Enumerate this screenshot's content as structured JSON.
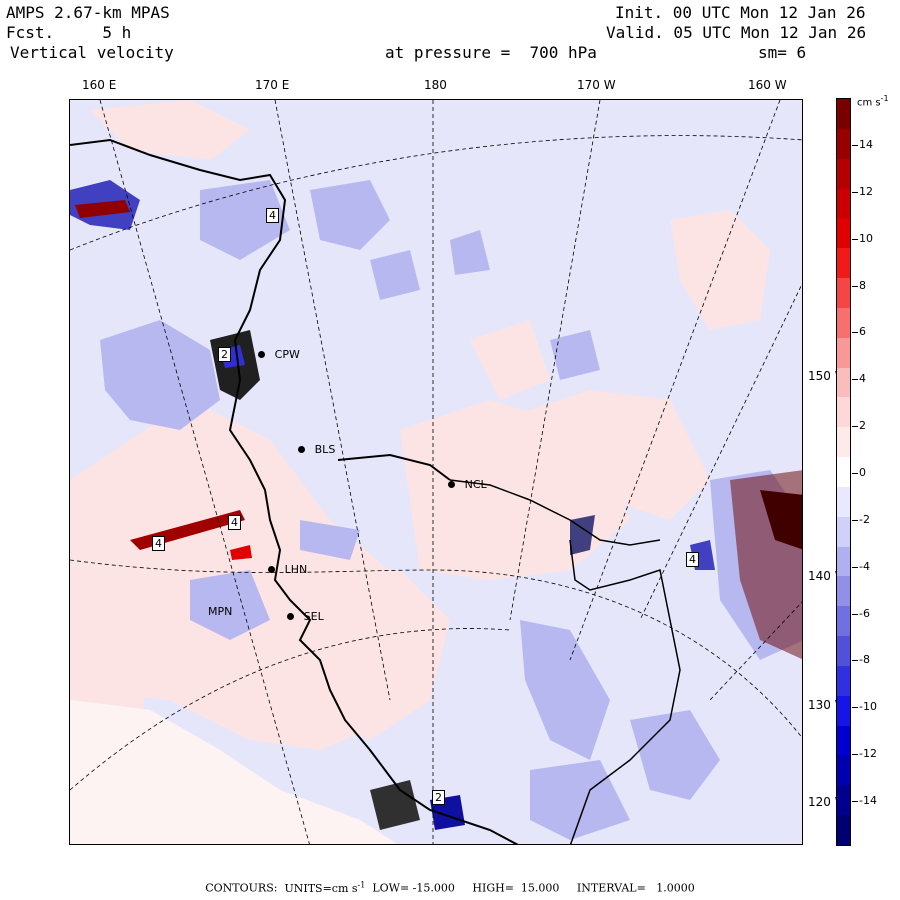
{
  "header": {
    "model": "AMPS 2.67-km MPAS",
    "fcst": "Fcst.     5 h",
    "field": "Vertical velocity",
    "init": "Init. 00 UTC Mon 12 Jan 26",
    "valid": "Valid. 05 UTC Mon 12 Jan 26",
    "level": "at pressure =  700 hPa",
    "smooth": "sm= 6"
  },
  "lon_labels": [
    "160 E",
    "170 E",
    "180",
    "170 W",
    "160 W"
  ],
  "lat_labels": [
    "150 W",
    "140 W",
    "130 W",
    "120 W"
  ],
  "colorbar": {
    "unit": "cm s",
    "unit_exp": "-1",
    "labels": [
      "14",
      "12",
      "10",
      "8",
      "6",
      "4",
      "2",
      "0",
      "-2",
      "-4",
      "-6",
      "-8",
      "-10",
      "-12",
      "-14"
    ],
    "colors": [
      "#7a0000",
      "#980000",
      "#b40000",
      "#cc0000",
      "#e00000",
      "#f01a1a",
      "#f54545",
      "#f77070",
      "#f99898",
      "#fbbcbc",
      "#fdd8d8",
      "#ffeaea",
      "#ffffff",
      "#e8e8ff",
      "#d0d0fa",
      "#b0b0f0",
      "#9090e8",
      "#7070e0",
      "#5050d8",
      "#3030e0",
      "#1515e8",
      "#0000d0",
      "#0000b0",
      "#000090",
      "#000070"
    ]
  },
  "stations": [
    "CPW",
    "BLS",
    "NCL",
    "LHN",
    "SEL",
    "MPN"
  ],
  "contour_markers": [
    "4",
    "2",
    "4",
    "4",
    "4",
    "2"
  ],
  "footer": {
    "contours_label": "CONTOURS:",
    "units_label": "UNITS=cm s",
    "units_exp": "-1",
    "low": "LOW= -15.000",
    "high": "HIGH=  15.000",
    "interval": "INTERVAL=   1.0000"
  },
  "colors": {
    "pos_light": "#fde4e4",
    "neg_light": "#dcdcfa",
    "pos_mid": "#f4a0a0",
    "neg_mid": "#8c8ce6"
  }
}
